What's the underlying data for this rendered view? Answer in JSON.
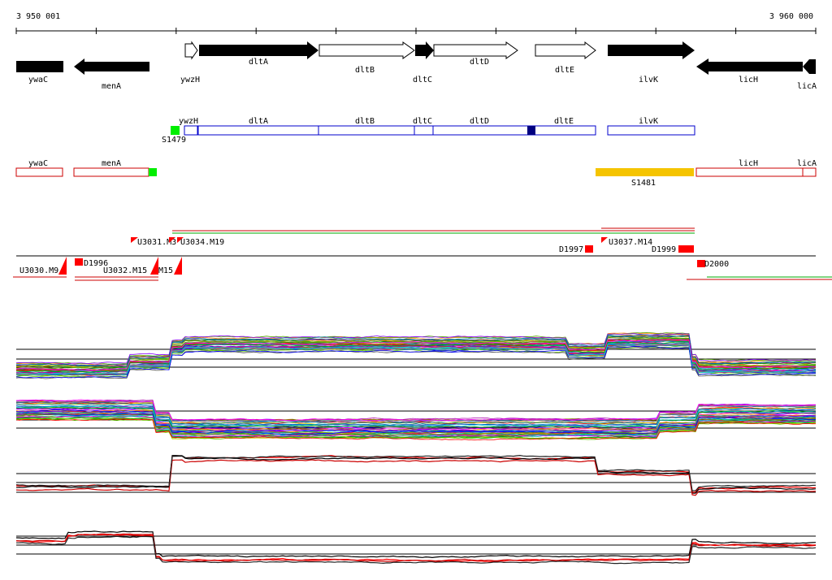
{
  "ruler": {
    "start_label": "3 950 001",
    "end_label": "3 960 000"
  },
  "genes_track": [
    {
      "name": "ywaC",
      "strand": "-",
      "fill": "black"
    },
    {
      "name": "menA",
      "strand": "-",
      "fill": "black"
    },
    {
      "name": "ywzH",
      "strand": "+",
      "fill": "white"
    },
    {
      "name": "dltA",
      "strand": "+",
      "fill": "black"
    },
    {
      "name": "dltB",
      "strand": "+",
      "fill": "white"
    },
    {
      "name": "dltC",
      "strand": "+",
      "fill": "black"
    },
    {
      "name": "dltD",
      "strand": "+",
      "fill": "white"
    },
    {
      "name": "dltE",
      "strand": "+",
      "fill": "white"
    },
    {
      "name": "ilvK",
      "strand": "+",
      "fill": "black"
    },
    {
      "name": "licH",
      "strand": "-",
      "fill": "black"
    },
    {
      "name": "licA",
      "strand": "-",
      "fill": "black"
    }
  ],
  "plus_track": {
    "genes": [
      "ywzH",
      "dltA",
      "dltB",
      "dltC",
      "dltD",
      "dltE",
      "ilvK"
    ],
    "features": [
      {
        "name": "S1479",
        "color": "#00ee00"
      }
    ]
  },
  "minus_track": {
    "genes": [
      "ywaC",
      "menA",
      "licH",
      "licA"
    ],
    "features": [
      {
        "name": "S1481",
        "color": "#f5c400"
      }
    ]
  },
  "probes_track": {
    "labels": [
      "U3031.M3",
      "U3030.M9",
      "D1996",
      "U3032.M15",
      "D1997",
      "U3037.M14",
      "D2000",
      "D1999"
    ]
  },
  "colors": {
    "gene_outline_blue": "#0000cc",
    "gene_outline_red": "#cc0000",
    "probe_red": "#ff0000",
    "sigma_green": "#00ee00",
    "sigma_yellow": "#f5c400"
  },
  "expression_panels": [
    {
      "name": "plus-strand-all"
    },
    {
      "name": "minus-strand-all"
    },
    {
      "name": "plus-strand-selected"
    },
    {
      "name": "minus-strand-selected"
    }
  ]
}
